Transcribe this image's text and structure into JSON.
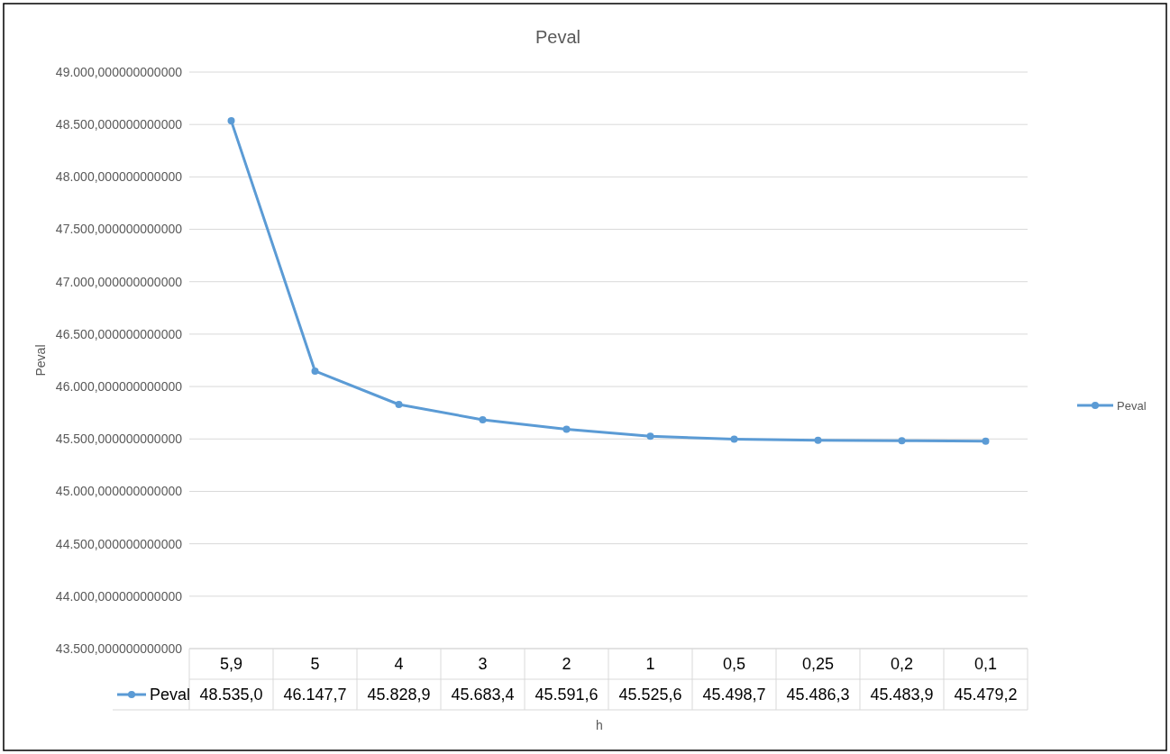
{
  "chart_data": {
    "type": "line",
    "title": "Peval",
    "xlabel": "h",
    "ylabel": "Peval",
    "categories": [
      "5,9",
      "5",
      "4",
      "3",
      "2",
      "1",
      "0,5",
      "0,25",
      "0,2",
      "0,1"
    ],
    "series": [
      {
        "name": "Peval",
        "color": "#5b9bd5",
        "values": [
          48535.0,
          46147.7,
          45828.9,
          45683.4,
          45591.6,
          45525.6,
          45498.7,
          45486.3,
          45483.9,
          45479.2
        ],
        "value_labels": [
          "48.535,0",
          "46.147,7",
          "45.828,9",
          "45.683,4",
          "45.591,6",
          "45.525,6",
          "45.498,7",
          "45.486,3",
          "45.483,9",
          "45.479,2"
        ]
      }
    ],
    "ylim": [
      43500,
      49000
    ],
    "yticks": [
      {
        "value": 43500,
        "label": "43.500,000000000000"
      },
      {
        "value": 44000,
        "label": "44.000,000000000000"
      },
      {
        "value": 44500,
        "label": "44.500,000000000000"
      },
      {
        "value": 45000,
        "label": "45.000,000000000000"
      },
      {
        "value": 45500,
        "label": "45.500,000000000000"
      },
      {
        "value": 46000,
        "label": "46.000,000000000000"
      },
      {
        "value": 46500,
        "label": "46.500,000000000000"
      },
      {
        "value": 47000,
        "label": "47.000,000000000000"
      },
      {
        "value": 47500,
        "label": "47.500,000000000000"
      },
      {
        "value": 48000,
        "label": "48.000,000000000000"
      },
      {
        "value": 48500,
        "label": "48.500,000000000000"
      },
      {
        "value": 49000,
        "label": "49.000,000000000000"
      }
    ],
    "grid": "y",
    "legend": "right",
    "marker": "circle",
    "line_style": "solid"
  }
}
